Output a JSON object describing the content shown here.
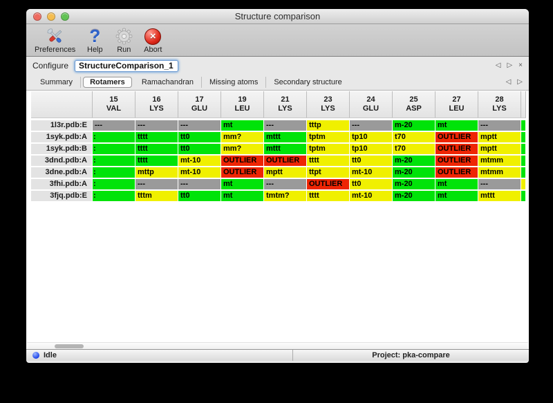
{
  "window": {
    "title": "Structure comparison"
  },
  "colors": {
    "cell_ok": "#00e309",
    "cell_warn": "#f0f000",
    "cell_outlier": "#ee2504",
    "cell_na": "#9a9a9a",
    "traffic_close": "#ee6a5f",
    "traffic_minimize": "#f5bd4f",
    "traffic_zoom": "#61c354",
    "status_dot": "#1a41e8",
    "focus_ring": "#7aabdd"
  },
  "toolbar": {
    "items": [
      {
        "label": "Preferences",
        "icon": "tools-icon"
      },
      {
        "label": "Help",
        "icon": "question-icon"
      },
      {
        "label": "Run",
        "icon": "gear-icon"
      },
      {
        "label": "Abort",
        "icon": "abort-icon"
      }
    ]
  },
  "configure": {
    "label": "Configure",
    "value": "StructureComparison_1"
  },
  "icons": {
    "prev": "◁",
    "next": "▷",
    "close": "×",
    "help_glyph": "?",
    "abort_glyph": "×"
  },
  "tabs": [
    {
      "label": "Summary",
      "selected": false
    },
    {
      "label": "Rotamers",
      "selected": true
    },
    {
      "label": "Ramachandran",
      "selected": false
    },
    {
      "label": "Missing atoms",
      "selected": false
    },
    {
      "label": "Secondary structure",
      "selected": false
    }
  ],
  "table": {
    "columns": [
      {
        "num": "15",
        "res": "VAL"
      },
      {
        "num": "16",
        "res": "LYS"
      },
      {
        "num": "17",
        "res": "GLU"
      },
      {
        "num": "19",
        "res": "LEU"
      },
      {
        "num": "21",
        "res": "LYS"
      },
      {
        "num": "23",
        "res": "LYS"
      },
      {
        "num": "24",
        "res": "GLU"
      },
      {
        "num": "25",
        "res": "ASP"
      },
      {
        "num": "27",
        "res": "LEU"
      },
      {
        "num": "28",
        "res": "LYS"
      }
    ],
    "rows": [
      {
        "label": "1l3r.pdb:E",
        "cells": [
          {
            "t": "---",
            "s": "na"
          },
          {
            "t": "---",
            "s": "na"
          },
          {
            "t": "---",
            "s": "na"
          },
          {
            "t": "mt",
            "s": "ok"
          },
          {
            "t": "---",
            "s": "na"
          },
          {
            "t": "tttp",
            "s": "warn"
          },
          {
            "t": "---",
            "s": "na"
          },
          {
            "t": "m-20",
            "s": "ok"
          },
          {
            "t": "mt",
            "s": "ok"
          },
          {
            "t": "---",
            "s": "na"
          }
        ],
        "overflow": "ok"
      },
      {
        "label": "1syk.pdb:A",
        "cells": [
          {
            "t": ":",
            "s": "ok"
          },
          {
            "t": "tttt",
            "s": "ok"
          },
          {
            "t": "tt0",
            "s": "ok"
          },
          {
            "t": "mm?",
            "s": "warn"
          },
          {
            "t": "mttt",
            "s": "ok"
          },
          {
            "t": "tptm",
            "s": "warn"
          },
          {
            "t": "tp10",
            "s": "warn"
          },
          {
            "t": "t70",
            "s": "warn"
          },
          {
            "t": "OUTLIER",
            "s": "outlier"
          },
          {
            "t": "mptt",
            "s": "warn"
          }
        ],
        "overflow": "ok"
      },
      {
        "label": "1syk.pdb:B",
        "cells": [
          {
            "t": ":",
            "s": "ok"
          },
          {
            "t": "tttt",
            "s": "ok"
          },
          {
            "t": "tt0",
            "s": "ok"
          },
          {
            "t": "mm?",
            "s": "warn"
          },
          {
            "t": "mttt",
            "s": "ok"
          },
          {
            "t": "tptm",
            "s": "warn"
          },
          {
            "t": "tp10",
            "s": "warn"
          },
          {
            "t": "t70",
            "s": "warn"
          },
          {
            "t": "OUTLIER",
            "s": "outlier"
          },
          {
            "t": "mptt",
            "s": "warn"
          }
        ],
        "overflow": "ok"
      },
      {
        "label": "3dnd.pdb:A",
        "cells": [
          {
            "t": ":",
            "s": "ok"
          },
          {
            "t": "tttt",
            "s": "ok"
          },
          {
            "t": "mt-10",
            "s": "warn"
          },
          {
            "t": "OUTLIER",
            "s": "outlier"
          },
          {
            "t": "OUTLIER",
            "s": "outlier"
          },
          {
            "t": "tttt",
            "s": "warn"
          },
          {
            "t": "tt0",
            "s": "warn"
          },
          {
            "t": "m-20",
            "s": "ok"
          },
          {
            "t": "OUTLIER",
            "s": "outlier"
          },
          {
            "t": "mtmm",
            "s": "warn"
          }
        ],
        "overflow": "ok"
      },
      {
        "label": "3dne.pdb:A",
        "cells": [
          {
            "t": ":",
            "s": "ok"
          },
          {
            "t": "mttp",
            "s": "warn"
          },
          {
            "t": "mt-10",
            "s": "warn"
          },
          {
            "t": "OUTLIER",
            "s": "outlier"
          },
          {
            "t": "mptt",
            "s": "warn"
          },
          {
            "t": "ttpt",
            "s": "warn"
          },
          {
            "t": "mt-10",
            "s": "warn"
          },
          {
            "t": "m-20",
            "s": "ok"
          },
          {
            "t": "OUTLIER",
            "s": "outlier"
          },
          {
            "t": "mtmm",
            "s": "warn"
          }
        ],
        "overflow": "ok"
      },
      {
        "label": "3fhi.pdb:A",
        "cells": [
          {
            "t": ":",
            "s": "ok"
          },
          {
            "t": "---",
            "s": "na"
          },
          {
            "t": "---",
            "s": "na"
          },
          {
            "t": "mt",
            "s": "ok"
          },
          {
            "t": "---",
            "s": "na"
          },
          {
            "t": "OUTLIER",
            "s": "outlier"
          },
          {
            "t": "tt0",
            "s": "warn"
          },
          {
            "t": "m-20",
            "s": "ok"
          },
          {
            "t": "mt",
            "s": "ok"
          },
          {
            "t": "---",
            "s": "na"
          }
        ],
        "overflow": "warn"
      },
      {
        "label": "3fjq.pdb:E",
        "cells": [
          {
            "t": ":",
            "s": "ok"
          },
          {
            "t": "tttm",
            "s": "warn"
          },
          {
            "t": "tt0",
            "s": "ok"
          },
          {
            "t": "mt",
            "s": "ok"
          },
          {
            "t": "tmtm?",
            "s": "warn"
          },
          {
            "t": "tttt",
            "s": "warn"
          },
          {
            "t": "mt-10",
            "s": "warn"
          },
          {
            "t": "m-20",
            "s": "ok"
          },
          {
            "t": "mt",
            "s": "ok"
          },
          {
            "t": "mttt",
            "s": "warn"
          }
        ],
        "overflow": "ok"
      }
    ]
  },
  "statusbar": {
    "status": "Idle",
    "project": "Project: pka-compare"
  }
}
